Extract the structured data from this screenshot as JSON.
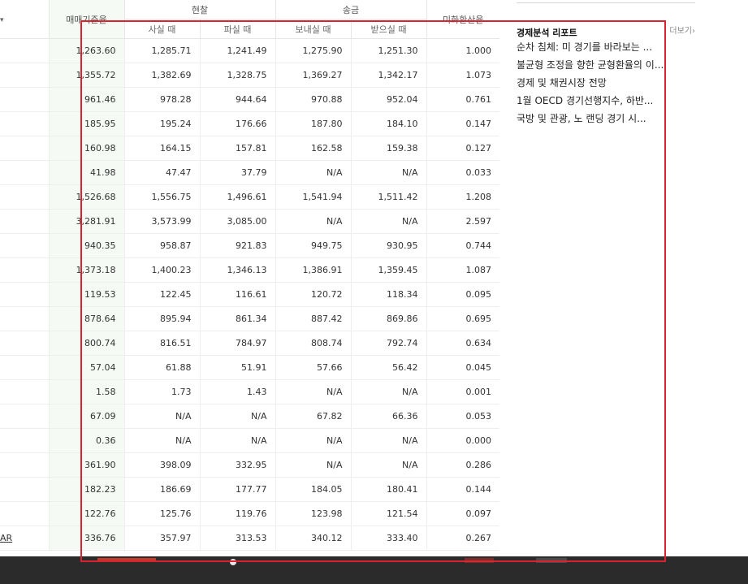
{
  "table": {
    "col_sort_arrow": "▾",
    "col_base": "매매기준율",
    "group_cash": "현찰",
    "group_remit": "송금",
    "col_buy_cash": "사실 때",
    "col_sell_cash": "파실 때",
    "col_send": "보내실 때",
    "col_receive": "받으실 때",
    "col_usd_rate": "미화환산율",
    "rows": [
      {
        "name": "",
        "base": "1,263.60",
        "buy": "1,285.71",
        "sell": "1,241.49",
        "send": "1,275.90",
        "receive": "1,251.30",
        "usd": "1.000"
      },
      {
        "name": "",
        "base": "1,355.72",
        "buy": "1,382.69",
        "sell": "1,328.75",
        "send": "1,369.27",
        "receive": "1,342.17",
        "usd": "1.073"
      },
      {
        "name": "",
        "base": "961.46",
        "buy": "978.28",
        "sell": "944.64",
        "send": "970.88",
        "receive": "952.04",
        "usd": "0.761"
      },
      {
        "name": "",
        "base": "185.95",
        "buy": "195.24",
        "sell": "176.66",
        "send": "187.80",
        "receive": "184.10",
        "usd": "0.147"
      },
      {
        "name": "",
        "base": "160.98",
        "buy": "164.15",
        "sell": "157.81",
        "send": "162.58",
        "receive": "159.38",
        "usd": "0.127"
      },
      {
        "name": "",
        "base": "41.98",
        "buy": "47.47",
        "sell": "37.79",
        "send": "N/A",
        "receive": "N/A",
        "usd": "0.033"
      },
      {
        "name": "",
        "base": "1,526.68",
        "buy": "1,556.75",
        "sell": "1,496.61",
        "send": "1,541.94",
        "receive": "1,511.42",
        "usd": "1.208"
      },
      {
        "name": "",
        "base": "3,281.91",
        "buy": "3,573.99",
        "sell": "3,085.00",
        "send": "N/A",
        "receive": "N/A",
        "usd": "2.597"
      },
      {
        "name": "",
        "base": "940.35",
        "buy": "958.87",
        "sell": "921.83",
        "send": "949.75",
        "receive": "930.95",
        "usd": "0.744"
      },
      {
        "name": "",
        "base": "1,373.18",
        "buy": "1,400.23",
        "sell": "1,346.13",
        "send": "1,386.91",
        "receive": "1,359.45",
        "usd": "1.087"
      },
      {
        "name": "",
        "base": "119.53",
        "buy": "122.45",
        "sell": "116.61",
        "send": "120.72",
        "receive": "118.34",
        "usd": "0.095"
      },
      {
        "name": "",
        "base": "878.64",
        "buy": "895.94",
        "sell": "861.34",
        "send": "887.42",
        "receive": "869.86",
        "usd": "0.695"
      },
      {
        "name": "",
        "base": "800.74",
        "buy": "816.51",
        "sell": "784.97",
        "send": "808.74",
        "receive": "792.74",
        "usd": "0.634"
      },
      {
        "name": "",
        "base": "57.04",
        "buy": "61.88",
        "sell": "51.91",
        "send": "57.66",
        "receive": "56.42",
        "usd": "0.045"
      },
      {
        "name": "",
        "base": "1.58",
        "buy": "1.73",
        "sell": "1.43",
        "send": "N/A",
        "receive": "N/A",
        "usd": "0.001"
      },
      {
        "name": "",
        "base": "67.09",
        "buy": "N/A",
        "sell": "N/A",
        "send": "67.82",
        "receive": "66.36",
        "usd": "0.053"
      },
      {
        "name": "",
        "base": "0.36",
        "buy": "N/A",
        "sell": "N/A",
        "send": "N/A",
        "receive": "N/A",
        "usd": "0.000"
      },
      {
        "name": "",
        "base": "361.90",
        "buy": "398.09",
        "sell": "332.95",
        "send": "N/A",
        "receive": "N/A",
        "usd": "0.286"
      },
      {
        "name": "",
        "base": "182.23",
        "buy": "186.69",
        "sell": "177.77",
        "send": "184.05",
        "receive": "180.41",
        "usd": "0.144"
      },
      {
        "name": "",
        "base": "122.76",
        "buy": "125.76",
        "sell": "119.76",
        "send": "123.98",
        "receive": "121.54",
        "usd": "0.097"
      },
      {
        "name": "AR",
        "base": "336.76",
        "buy": "357.97",
        "sell": "313.53",
        "send": "340.12",
        "receive": "333.40",
        "usd": "0.267"
      }
    ]
  },
  "sidebar": {
    "title": "경제분석 리포트",
    "more": "더보기",
    "more_arrow": "›",
    "items": [
      "순차 침체: 미 경기를 바라보는 ...",
      "불균형 조정을 향한 균형환율의 이...",
      "경제 및 채권시장 전망",
      "1월 OECD 경기선행지수, 하반...",
      "국방 및 관광, 노 랜딩 경기 시..."
    ]
  },
  "colors": {
    "highlight_box": "#d9232e",
    "base_column_bg": "#f5faf5",
    "taskbar": "#2b2b2b"
  }
}
